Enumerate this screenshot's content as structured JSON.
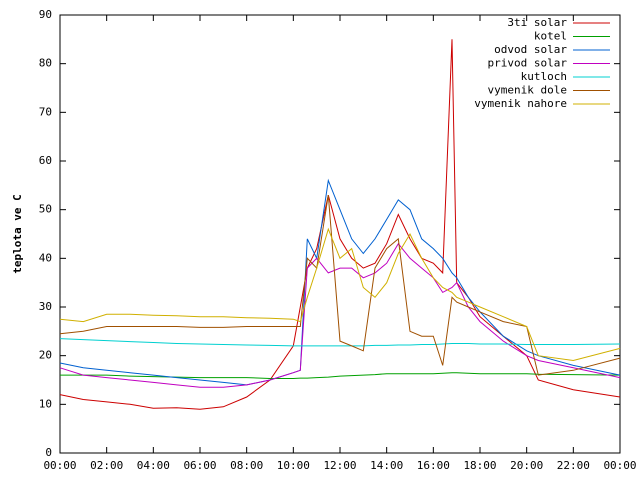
{
  "chart_data": {
    "type": "line",
    "ylabel": "teplota ve C",
    "x": [
      0,
      1,
      2,
      3,
      4,
      5,
      6,
      7,
      8,
      9,
      10,
      10.3,
      10.6,
      11,
      11.5,
      12,
      12.5,
      13,
      13.5,
      14,
      14.5,
      15,
      15.5,
      16,
      16.4,
      16.8,
      17,
      17.5,
      18,
      19,
      20,
      20.5,
      22,
      24
    ],
    "xlim": [
      0,
      24
    ],
    "xticks": [
      {
        "value": 0,
        "label": "00:00"
      },
      {
        "value": 2,
        "label": "02:00"
      },
      {
        "value": 4,
        "label": "04:00"
      },
      {
        "value": 6,
        "label": "06:00"
      },
      {
        "value": 8,
        "label": "08:00"
      },
      {
        "value": 10,
        "label": "10:00"
      },
      {
        "value": 12,
        "label": "12:00"
      },
      {
        "value": 14,
        "label": "14:00"
      },
      {
        "value": 16,
        "label": "16:00"
      },
      {
        "value": 18,
        "label": "18:00"
      },
      {
        "value": 20,
        "label": "20:00"
      },
      {
        "value": 22,
        "label": "22:00"
      },
      {
        "value": 24,
        "label": "00:00"
      }
    ],
    "ylim": [
      0,
      90
    ],
    "yticks": [
      0,
      10,
      20,
      30,
      40,
      50,
      60,
      70,
      80,
      90
    ],
    "legend": "top-right",
    "series": [
      {
        "name": "3ti solar",
        "color": "#cc0000",
        "values": [
          12,
          11,
          10.5,
          10,
          9.2,
          9.3,
          9,
          9.5,
          11.5,
          15,
          22,
          30,
          38,
          42,
          53,
          44,
          40,
          38,
          39,
          43,
          49,
          44,
          40,
          39,
          37,
          85,
          35,
          32,
          28,
          24,
          20,
          15,
          13,
          11.5
        ]
      },
      {
        "name": "kotel",
        "color": "#00a000",
        "values": [
          16,
          16,
          16,
          15.8,
          15.7,
          15.6,
          15.5,
          15.5,
          15.5,
          15.3,
          15.3,
          15.4,
          15.4,
          15.5,
          15.6,
          15.8,
          15.9,
          16,
          16.1,
          16.3,
          16.3,
          16.3,
          16.3,
          16.3,
          16.4,
          16.5,
          16.5,
          16.4,
          16.3,
          16.3,
          16.3,
          16.2,
          16.1,
          16
        ]
      },
      {
        "name": "odvod solar",
        "color": "#0060d0",
        "values": [
          18.5,
          17.5,
          17,
          16.5,
          16,
          15.5,
          15,
          14.5,
          14,
          15,
          16.5,
          17,
          44,
          40,
          56,
          50,
          44,
          41,
          44,
          48,
          52,
          50,
          44,
          42,
          40,
          37,
          36,
          32,
          29,
          24,
          21,
          20,
          18,
          16
        ]
      },
      {
        "name": "privod solar",
        "color": "#c000c0",
        "values": [
          17.5,
          16,
          15.5,
          15,
          14.5,
          14,
          13.5,
          13.5,
          14,
          15,
          16.5,
          17,
          38,
          40,
          37,
          38,
          38,
          36,
          37,
          39,
          43,
          40,
          38,
          36,
          33,
          34,
          35,
          30,
          27,
          23,
          20,
          19,
          17.5,
          15.5
        ]
      },
      {
        "name": "kutloch",
        "color": "#00d0d0",
        "values": [
          23.5,
          23.3,
          23.1,
          22.9,
          22.7,
          22.5,
          22.4,
          22.3,
          22.2,
          22.1,
          22,
          22,
          22,
          22,
          22,
          22,
          22,
          22,
          22.1,
          22.1,
          22.2,
          22.2,
          22.3,
          22.3,
          22.4,
          22.5,
          22.5,
          22.5,
          22.4,
          22.4,
          22.3,
          22.3,
          22.3,
          22.4
        ]
      },
      {
        "name": "vymenik dole",
        "color": "#a05000",
        "values": [
          24.5,
          25,
          26,
          26,
          26,
          26,
          25.8,
          25.8,
          26,
          26,
          26,
          26,
          40,
          38,
          53,
          23,
          22,
          21,
          38,
          42,
          44,
          25,
          24,
          24,
          18,
          32,
          31,
          30,
          29,
          27,
          26,
          16,
          17,
          19.5
        ]
      },
      {
        "name": "vymenik nahore",
        "color": "#d0b000",
        "values": [
          27.5,
          27,
          28.5,
          28.5,
          28.3,
          28.2,
          28,
          28,
          27.8,
          27.7,
          27.5,
          27,
          32,
          38,
          46,
          40,
          42,
          34,
          32,
          35,
          41,
          45,
          40,
          36,
          34,
          33,
          32,
          31,
          30,
          28,
          26,
          20,
          19,
          21.5
        ]
      }
    ]
  }
}
